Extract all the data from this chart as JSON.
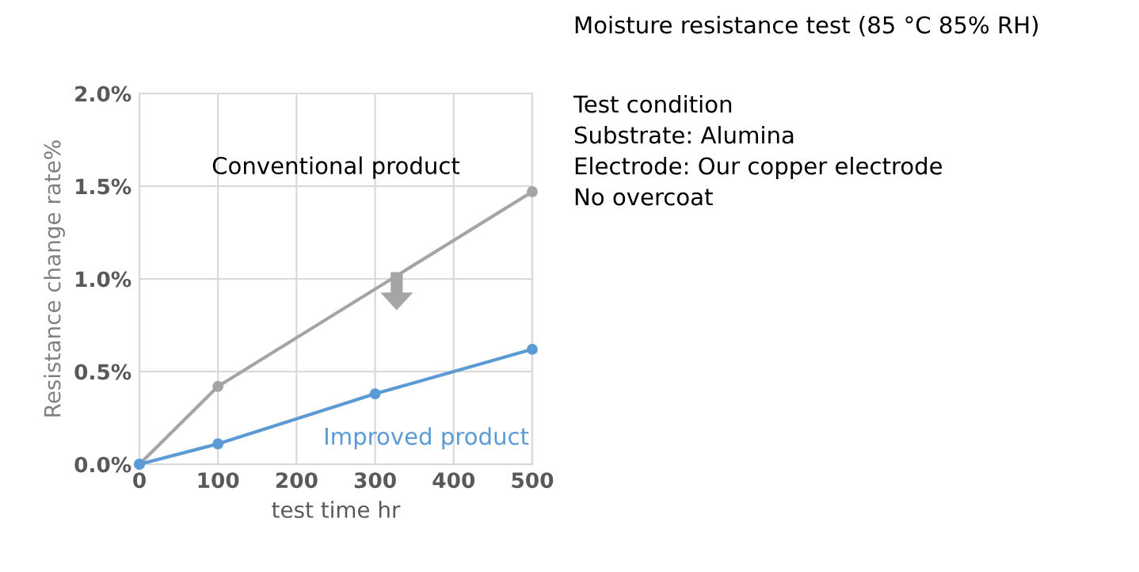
{
  "chart_data": {
    "type": "line",
    "title": "Moisture resistance test (85 °C 85% RH)",
    "annotations": [
      "Test condition",
      "Substrate: Alumina",
      "Electrode: Our copper electrode",
      "No overcoat"
    ],
    "xlabel": "test time hr",
    "ylabel": "Resistance change rate%",
    "series": [
      {
        "name": "Conventional product",
        "color": "#a5a5a5",
        "x": [
          0,
          100,
          500
        ],
        "values": [
          0,
          0.42,
          1.47
        ]
      },
      {
        "name": "Improved product",
        "color": "#5b9bd5",
        "x": [
          0,
          100,
          300,
          500
        ],
        "values": [
          0,
          0.11,
          0.38,
          0.62
        ]
      }
    ],
    "xlim": [
      0,
      500
    ],
    "xticks": [
      0,
      100,
      200,
      300,
      400,
      500
    ],
    "ylim": [
      0,
      2.0
    ],
    "yticks": [
      {
        "value": 0,
        "label": "0.0%"
      },
      {
        "value": 0.5,
        "label": "0.5%"
      },
      {
        "value": 1.0,
        "label": "1.0%"
      },
      {
        "value": 1.5,
        "label": "1.5%"
      },
      {
        "value": 2.0,
        "label": "2.0%"
      }
    ],
    "grid": true,
    "marker": "circle",
    "line_style": "solid"
  }
}
